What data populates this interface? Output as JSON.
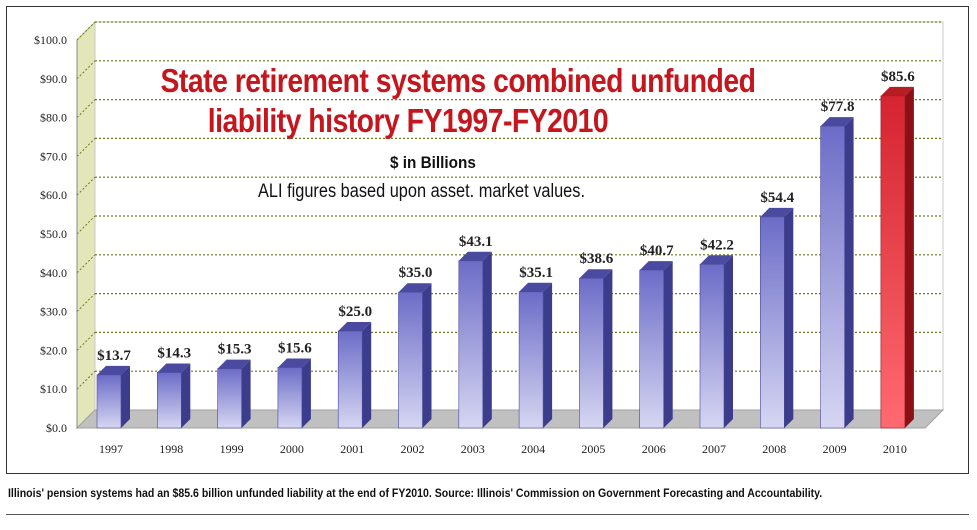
{
  "chart_data": {
    "type": "bar",
    "title_line1": "State retirement systems combined unfunded",
    "title_line2": "liability history FY1997-FY2010",
    "subtitle": "$ in Billions",
    "note": "ALI figures based upon asset. market values.",
    "categories": [
      "1997",
      "1998",
      "1999",
      "2000",
      "2001",
      "2002",
      "2003",
      "2004",
      "2005",
      "2006",
      "2007",
      "2008",
      "2009",
      "2010"
    ],
    "values": [
      13.7,
      14.3,
      15.3,
      15.6,
      25.0,
      35.0,
      43.1,
      35.1,
      38.6,
      40.7,
      42.2,
      54.4,
      77.8,
      85.6
    ],
    "data_labels": [
      "$13.7",
      "$14.3",
      "$15.3",
      "$15.6",
      "$25.0",
      "$35.0",
      "$43.1",
      "$35.1",
      "$38.6",
      "$40.7",
      "$42.2",
      "$54.4",
      "$77.8",
      "$85.6"
    ],
    "y_ticks": [
      0,
      10,
      20,
      30,
      40,
      50,
      60,
      70,
      80,
      90,
      100
    ],
    "y_tick_labels": [
      "$0.0",
      "$10.0",
      "$20.0",
      "$30.0",
      "$40.0",
      "$50.0",
      "$60.0",
      "$70.0",
      "$80.0",
      "$90.0",
      "$100.0"
    ],
    "ylim": [
      0,
      100
    ],
    "grid": true,
    "highlight_category": "2010",
    "colors": {
      "bar": "#7b7bd0",
      "bar_dark": "#3c3c8c",
      "highlight": "#e0303a",
      "highlight_dark": "#8a1016",
      "title": "#c4161c",
      "wall": "#e3e6b8",
      "grid": "#6b7a1a"
    }
  },
  "caption": "Illinois' pension systems had an $85.6 billion unfunded liability at the end of FY2010. Source: Illinois' Commission on Government Forecasting and Accountability."
}
